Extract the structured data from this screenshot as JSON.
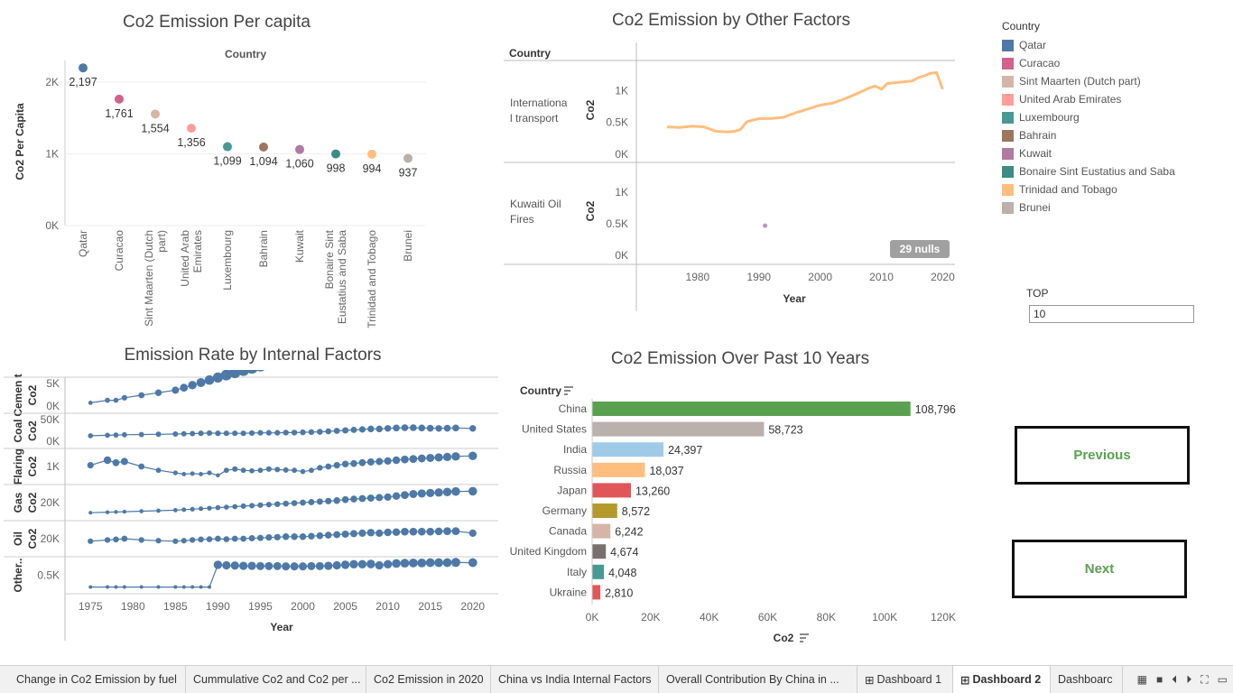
{
  "titles": {
    "per_capita": "Co2 Emission Per capita",
    "other_factors": "Co2 Emission by Other Factors",
    "internal": "Emission Rate by Internal Factors",
    "past10": "Co2 Emission Over Past 10 Years"
  },
  "per_capita_chart": {
    "header": "Country",
    "ylabel": "Co2 Per Capita",
    "yticks": [
      "2K",
      "1K",
      "0K"
    ]
  },
  "other_chart": {
    "header": "Country",
    "row1_label": "Internationa l transport",
    "row2_label": "Kuwaiti Oil Fires",
    "ylabel": "Co2",
    "yticks": [
      "1K",
      "0.5K",
      "0K"
    ],
    "xticks": [
      "1980",
      "1990",
      "2000",
      "2010",
      "2020"
    ],
    "xlabel": "Year",
    "nulls_badge": "29 nulls"
  },
  "internal_chart": {
    "rows": [
      {
        "label": "Cemen t Co2",
        "ticks": [
          "5K",
          "0K"
        ]
      },
      {
        "label": "Coal Co2",
        "ticks": [
          "50K",
          "0K"
        ]
      },
      {
        "label": "Flaring Co2",
        "ticks": [
          "1K"
        ]
      },
      {
        "label": "Gas Co2",
        "ticks": [
          "20K"
        ]
      },
      {
        "label": "Oil Co2",
        "ticks": [
          "20K"
        ]
      },
      {
        "label": "Other..",
        "ticks": [
          "0.5K"
        ]
      }
    ],
    "xticks": [
      "1975",
      "1980",
      "1985",
      "1990",
      "1995",
      "2000",
      "2005",
      "2010",
      "2015",
      "2020"
    ],
    "xlabel": "Year"
  },
  "past10_chart": {
    "header": "Country",
    "xticks": [
      "0K",
      "20K",
      "40K",
      "60K",
      "80K",
      "100K",
      "120K"
    ],
    "xlabel": "Co2"
  },
  "legend": {
    "title": "Country",
    "items": [
      {
        "name": "Qatar",
        "color": "#4e79a7"
      },
      {
        "name": "Curacao",
        "color": "#d4608f"
      },
      {
        "name": "Sint Maarten (Dutch part)",
        "color": "#d7b5a6"
      },
      {
        "name": "United Arab Emirates",
        "color": "#ff9d9a"
      },
      {
        "name": "Luxembourg",
        "color": "#499894"
      },
      {
        "name": "Bahrain",
        "color": "#9d7660"
      },
      {
        "name": "Kuwait",
        "color": "#b07aa1"
      },
      {
        "name": "Bonaire Sint Eustatius and Saba",
        "color": "#3b8c84"
      },
      {
        "name": "Trinidad and Tobago",
        "color": "#ffbe7d"
      },
      {
        "name": "Brunei",
        "color": "#bab0ac"
      }
    ]
  },
  "top_param": {
    "label": "TOP",
    "value": "10"
  },
  "buttons": {
    "previous": "Previous",
    "next": "Next"
  },
  "tabs": [
    "Change in Co2 Emission by fuel",
    "Cummulative Co2 and Co2 per ...",
    "Co2 Emission in 2020",
    "China vs India Internal Factors",
    "Overall Contribution By China in ...",
    "Dashboard 1",
    "Dashboard 2",
    "Dashboarc"
  ],
  "active_tab": 6,
  "chart_data": [
    {
      "type": "scatter",
      "title": "Co2 Emission Per capita",
      "ylabel": "Co2 Per Capita",
      "ylim": [
        0,
        2300
      ],
      "categories": [
        "Qatar",
        "Curacao",
        "Sint Maarten (Dutch part)",
        "United Arab Emirates",
        "Luxembourg",
        "Bahrain",
        "Kuwait",
        "Bonaire Sint Eustatius and Saba",
        "Trinidad and Tobago",
        "Brunei"
      ],
      "values": [
        2197,
        1761,
        1554,
        1356,
        1099,
        1094,
        1060,
        998,
        994,
        937
      ],
      "labels": [
        "2,197",
        "1,761",
        "1,554",
        "1,356",
        "1,099",
        "1,094",
        "1,060",
        "998",
        "994",
        "937"
      ]
    },
    {
      "type": "line",
      "title": "Co2 Emission by Other Factors",
      "xlabel": "Year",
      "ylabel": "Co2",
      "series": [
        {
          "name": "Internationa l transport",
          "x": [
            1975,
            1977,
            1979,
            1981,
            1983,
            1985,
            1986,
            1987,
            1988,
            1990,
            1992,
            1994,
            1996,
            1998,
            2000,
            2002,
            2004,
            2006,
            2008,
            2009,
            2010,
            2011,
            2013,
            2015,
            2016,
            2017,
            2018,
            2019,
            2020
          ],
          "y": [
            430,
            420,
            440,
            430,
            360,
            350,
            360,
            390,
            510,
            560,
            560,
            580,
            650,
            710,
            770,
            800,
            870,
            950,
            1040,
            1070,
            1020,
            1110,
            1130,
            1150,
            1200,
            1230,
            1270,
            1280,
            1020
          ]
        },
        {
          "name": "Kuwaiti Oil Fires",
          "x": [
            1991
          ],
          "y": [
            470
          ]
        }
      ]
    },
    {
      "type": "line",
      "title": "Emission Rate by Internal Factors",
      "xlabel": "Year",
      "x": [
        1975,
        1977,
        1978,
        1979,
        1981,
        1983,
        1985,
        1986,
        1987,
        1988,
        1989,
        1990,
        1991,
        1992,
        1993,
        1994,
        1995,
        1996,
        1997,
        1998,
        1999,
        2000,
        2001,
        2002,
        2003,
        2004,
        2005,
        2006,
        2007,
        2008,
        2009,
        2010,
        2011,
        2012,
        2013,
        2014,
        2015,
        2016,
        2017,
        2018,
        2020
      ],
      "series": [
        {
          "name": "Cement Co2",
          "y": [
            0.2,
            0.3,
            0.3,
            0.4,
            0.5,
            0.6,
            0.7,
            0.8,
            0.9,
            1.0,
            1.1,
            1.2,
            1.3,
            1.4,
            1.5,
            1.6,
            1.7,
            1.8,
            1.9,
            2.0,
            2.1,
            2.3,
            2.5,
            2.8,
            3.1,
            3.4,
            3.7,
            3.9,
            4.2,
            4.4,
            4.6,
            4.8,
            5.1,
            5.3,
            5.4,
            5.4,
            5.5,
            5.6,
            5.7,
            5.8,
            5.9
          ]
        },
        {
          "name": "Coal Co2",
          "y": [
            0.3,
            0.32,
            0.33,
            0.34,
            0.35,
            0.36,
            0.37,
            0.38,
            0.39,
            0.4,
            0.41,
            0.4,
            0.4,
            0.4,
            0.4,
            0.41,
            0.42,
            0.42,
            0.42,
            0.43,
            0.43,
            0.44,
            0.45,
            0.46,
            0.48,
            0.5,
            0.52,
            0.54,
            0.56,
            0.58,
            0.58,
            0.6,
            0.62,
            0.63,
            0.63,
            0.62,
            0.61,
            0.6,
            0.61,
            0.62,
            0.6
          ]
        },
        {
          "name": "Flaring Co2",
          "y": [
            0.55,
            0.75,
            0.65,
            0.7,
            0.5,
            0.35,
            0.25,
            0.2,
            0.22,
            0.2,
            0.25,
            0.15,
            0.35,
            0.4,
            0.35,
            0.33,
            0.35,
            0.4,
            0.38,
            0.36,
            0.35,
            0.3,
            0.35,
            0.45,
            0.5,
            0.55,
            0.6,
            0.62,
            0.65,
            0.68,
            0.7,
            0.72,
            0.75,
            0.78,
            0.8,
            0.82,
            0.84,
            0.86,
            0.88,
            0.9,
            0.92
          ]
        },
        {
          "name": "Gas Co2",
          "y": [
            0.1,
            0.12,
            0.13,
            0.14,
            0.16,
            0.18,
            0.2,
            0.22,
            0.24,
            0.26,
            0.28,
            0.3,
            0.32,
            0.34,
            0.36,
            0.38,
            0.4,
            0.42,
            0.44,
            0.46,
            0.48,
            0.5,
            0.52,
            0.54,
            0.56,
            0.58,
            0.62,
            0.64,
            0.66,
            0.68,
            0.7,
            0.72,
            0.76,
            0.8,
            0.84,
            0.86,
            0.88,
            0.9,
            0.92,
            0.94,
            0.95
          ]
        },
        {
          "name": "Oil Co2",
          "y": [
            0.4,
            0.45,
            0.47,
            0.5,
            0.45,
            0.42,
            0.4,
            0.42,
            0.45,
            0.47,
            0.48,
            0.5,
            0.48,
            0.5,
            0.5,
            0.52,
            0.53,
            0.55,
            0.56,
            0.58,
            0.58,
            0.58,
            0.6,
            0.62,
            0.64,
            0.66,
            0.68,
            0.7,
            0.72,
            0.74,
            0.72,
            0.75,
            0.76,
            0.78,
            0.78,
            0.78,
            0.78,
            0.79,
            0.8,
            0.8,
            0.72
          ]
        },
        {
          "name": "Other Co2",
          "y": [
            0.05,
            0.05,
            0.05,
            0.05,
            0.05,
            0.05,
            0.05,
            0.05,
            0.05,
            0.05,
            0.05,
            0.9,
            0.88,
            0.87,
            0.86,
            0.86,
            0.85,
            0.85,
            0.85,
            0.84,
            0.84,
            0.84,
            0.85,
            0.85,
            0.86,
            0.88,
            0.9,
            0.92,
            0.92,
            0.93,
            0.88,
            0.92,
            0.95,
            0.96,
            0.97,
            0.97,
            0.98,
            0.98,
            0.98,
            0.99,
            0.98
          ]
        }
      ]
    },
    {
      "type": "bar",
      "title": "Co2 Emission Over Past 10 Years",
      "xlabel": "Co2",
      "xlim": [
        0,
        120000
      ],
      "categories": [
        "China",
        "United States",
        "India",
        "Russia",
        "Japan",
        "Germany",
        "Canada",
        "United Kingdom",
        "Italy",
        "Ukraine"
      ],
      "values": [
        108796,
        58723,
        24397,
        18037,
        13260,
        8572,
        6242,
        4674,
        4048,
        2810
      ],
      "labels": [
        "108,796",
        "58,723",
        "24,397",
        "18,037",
        "13,260",
        "8,572",
        "6,242",
        "4,674",
        "4,048",
        "2,810"
      ],
      "colors": [
        "#59a14f",
        "#bab0ac",
        "#a0cbe8",
        "#ffbe7d",
        "#e15759",
        "#b6992d",
        "#d7b5a6",
        "#79706e",
        "#499894",
        "#e15759"
      ]
    }
  ]
}
